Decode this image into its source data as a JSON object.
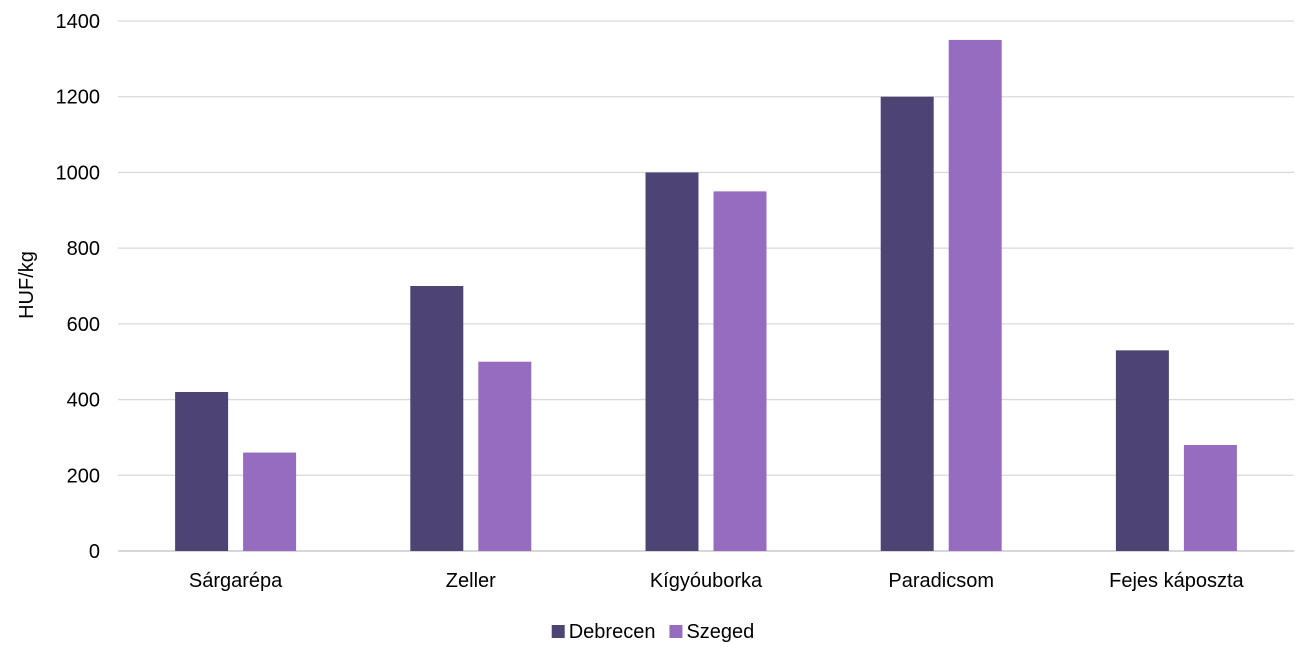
{
  "chart_data": {
    "type": "bar",
    "categories": [
      "Sárgarépa",
      "Zeller",
      "Kígyóuborka",
      "Paradicsom",
      "Fejes káposzta"
    ],
    "series": [
      {
        "name": "Debrecen",
        "values": [
          420,
          700,
          1000,
          1200,
          530
        ],
        "color": "#4e4474"
      },
      {
        "name": "Szeged",
        "values": [
          260,
          500,
          950,
          1350,
          280
        ],
        "color": "#966cc0"
      }
    ],
    "ylabel": "HUF/kg",
    "xlabel": "",
    "ylim": [
      0,
      1400
    ],
    "yticks": [
      0,
      200,
      400,
      600,
      800,
      1000,
      1200,
      1400
    ],
    "grid": true,
    "legend_position": "bottom"
  }
}
